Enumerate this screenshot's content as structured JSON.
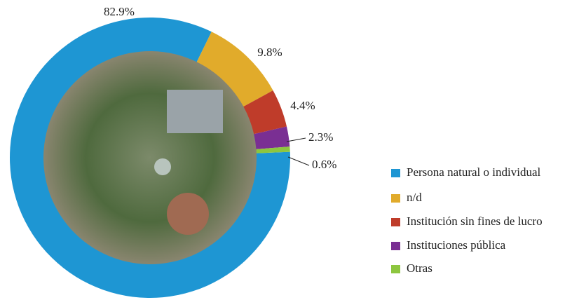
{
  "chart_data": {
    "type": "donut",
    "categories": [
      "Persona natural o individual",
      "n/d",
      "Institución sin fines de lucro",
      "Instituciones pública",
      "Otras"
    ],
    "values": [
      82.9,
      9.8,
      4.4,
      2.3,
      0.6
    ],
    "value_labels": [
      "82.9%",
      "9.8%",
      "4.4%",
      "2.3%",
      "0.6%"
    ],
    "colors": [
      "#1e96d3",
      "#e1ab2b",
      "#bf3c2a",
      "#7a2f93",
      "#8dc63f"
    ]
  }
}
